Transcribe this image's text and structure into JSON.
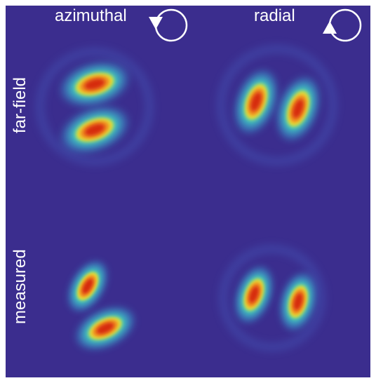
{
  "columns": [
    "azimuthal",
    "radial"
  ],
  "rows": [
    "far-field",
    "measured"
  ]
}
